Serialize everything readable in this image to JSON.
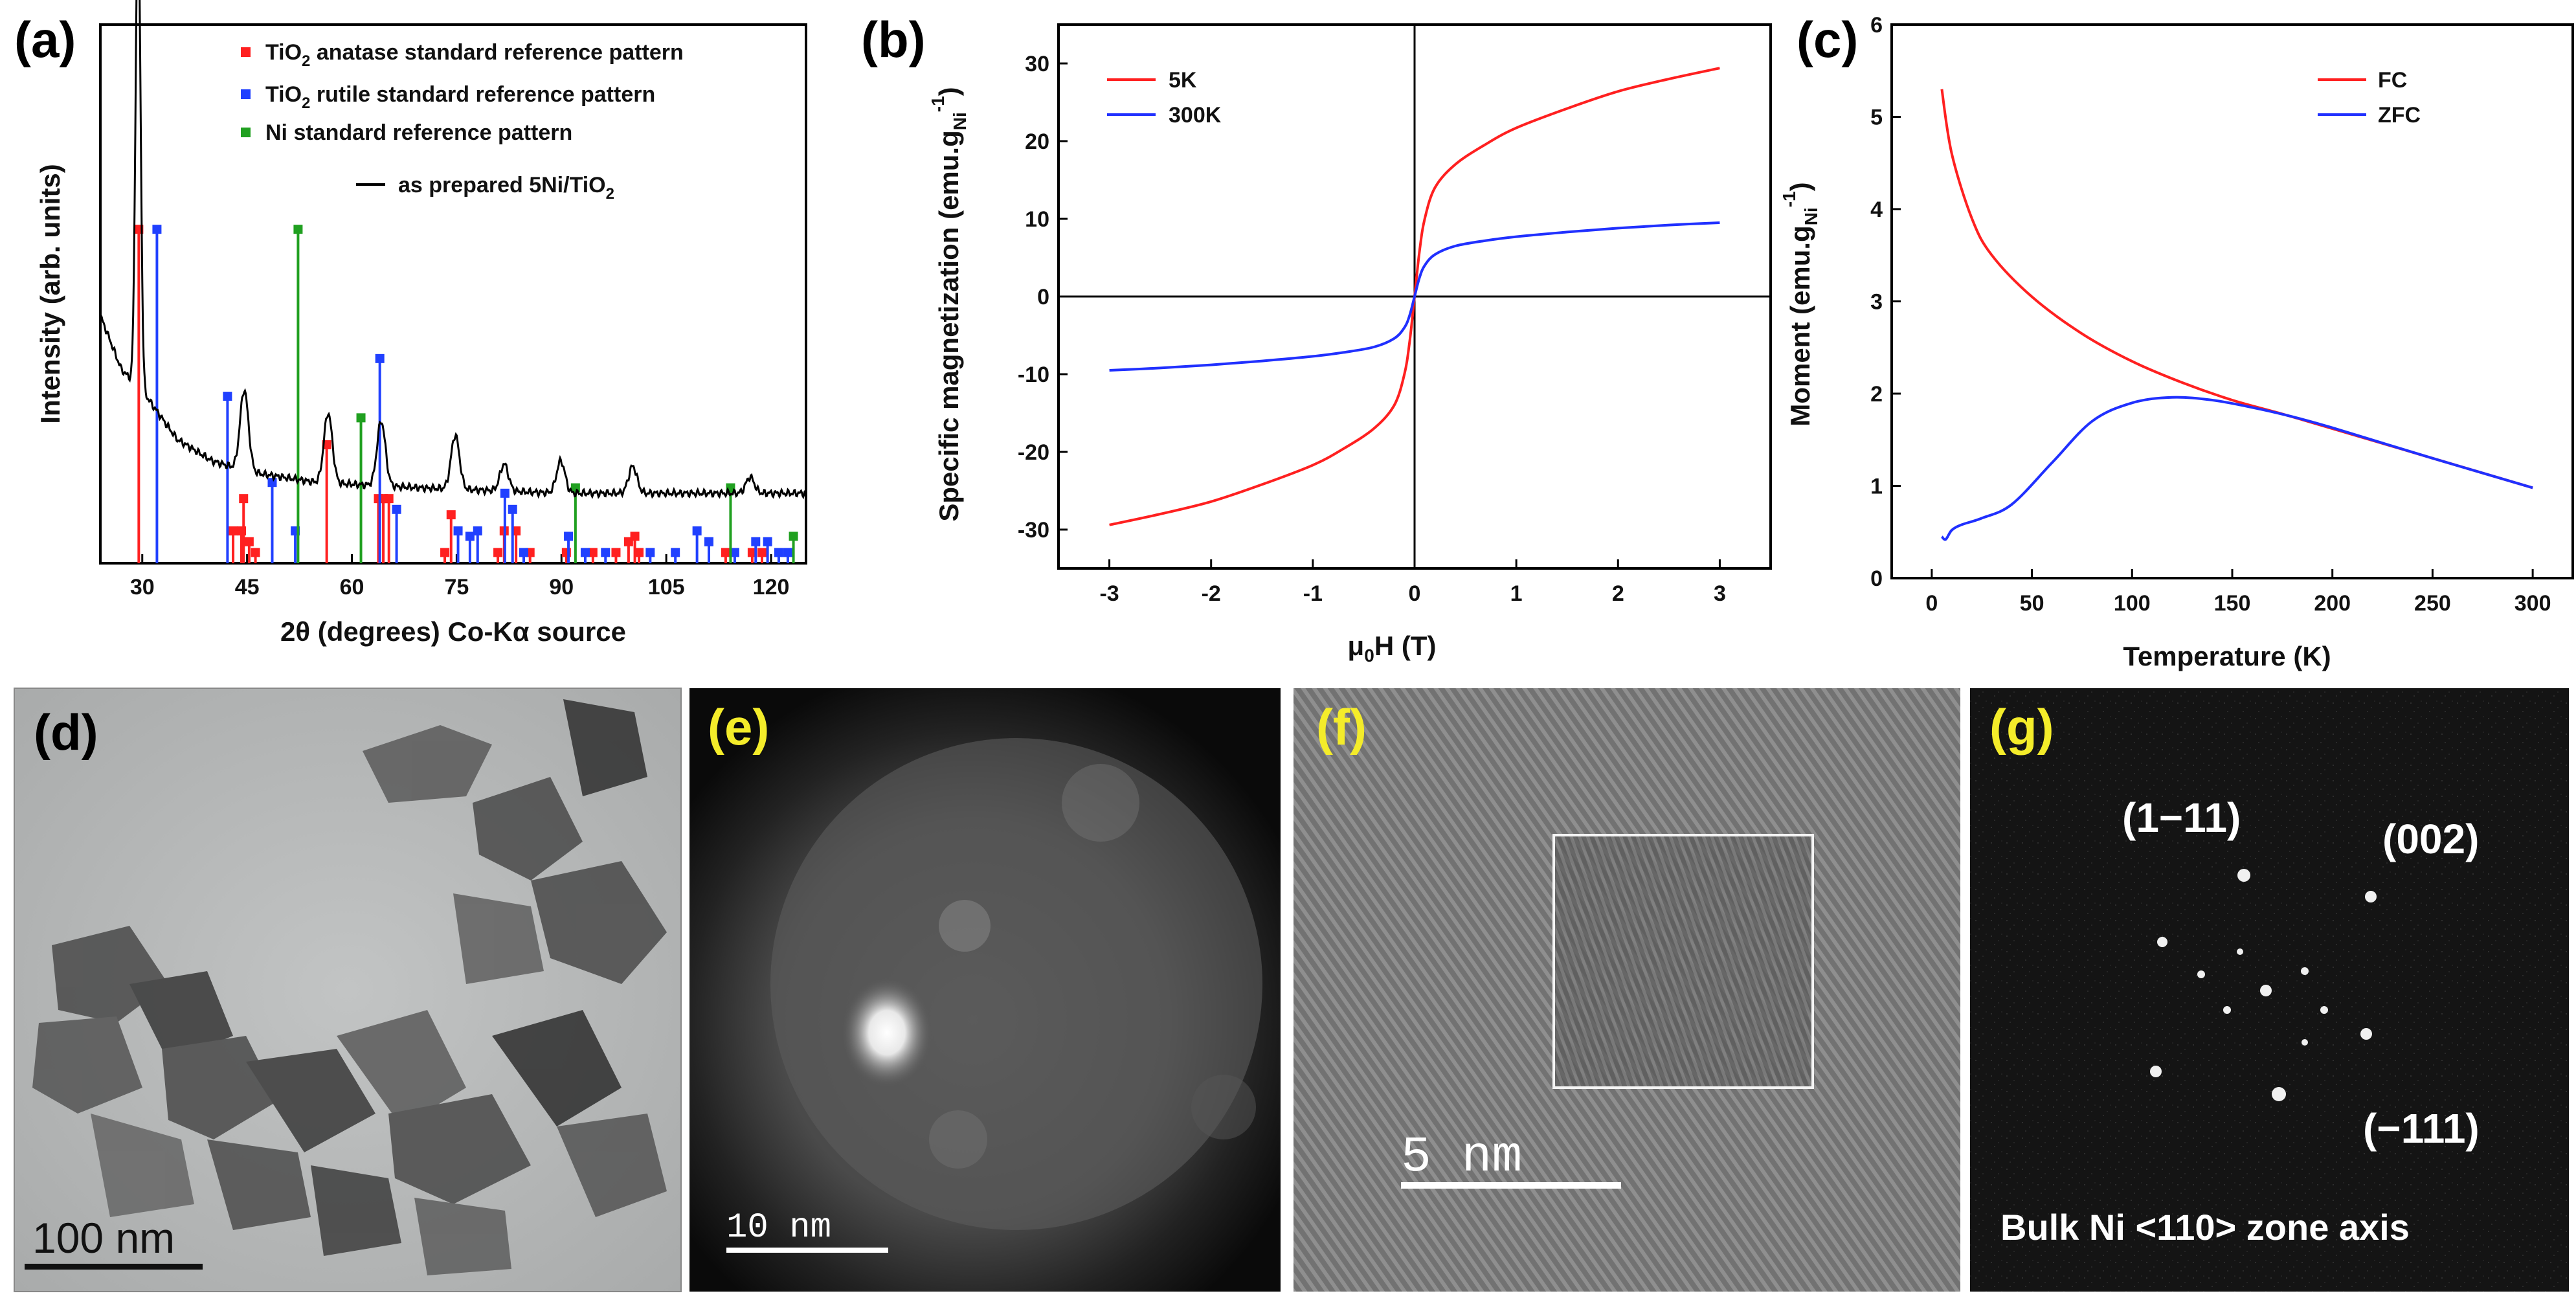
{
  "panels": {
    "a": {
      "letter": "(a)",
      "letter_color": "#000000"
    },
    "b": {
      "letter": "(b)",
      "letter_color": "#000000"
    },
    "c": {
      "letter": "(c)",
      "letter_color": "#000000"
    },
    "d": {
      "letter": "(d)",
      "letter_color": "#000000",
      "scale_bar": "100 nm"
    },
    "e": {
      "letter": "(e)",
      "letter_color": "#f4ec2a",
      "scale_bar": "10 nm"
    },
    "f": {
      "letter": "(f)",
      "letter_color": "#f4ec2a",
      "scale_bar": "5 nm"
    },
    "g": {
      "letter": "(g)",
      "letter_color": "#f4ec2a",
      "spot_labels": [
        "(1−11)",
        "(002)",
        "(−111)"
      ],
      "caption": "Bulk Ni <110> zone  axis"
    }
  },
  "chart_data": [
    {
      "panel": "a",
      "type": "line",
      "xlabel": "2θ (degrees) Co-Kα source",
      "ylabel": "Intensity (arb. units)",
      "xlim": [
        24,
        125
      ],
      "xticks": [
        30,
        45,
        60,
        75,
        90,
        105,
        120
      ],
      "legend": {
        "placement": "top-right",
        "entries": [
          {
            "label": "TiO",
            "sub": "2",
            "rest": " anatase standard reference pattern",
            "color": "#ff2020",
            "marker": "square"
          },
          {
            "label": "TiO",
            "sub": "2",
            "rest": " rutile standard reference pattern",
            "color": "#2040ff",
            "marker": "square"
          },
          {
            "label": "Ni standard reference pattern",
            "sub": "",
            "rest": "",
            "color": "#20a020",
            "marker": "square"
          },
          {
            "label": "as prepared 5Ni/TiO",
            "sub": "2",
            "rest": "",
            "color": "#000000",
            "marker": "line"
          }
        ]
      },
      "series": [
        {
          "name": "as prepared 5Ni/TiO2",
          "color": "#000000",
          "baseline": [
            [
              24,
              0.46
            ],
            [
              27,
              0.36
            ],
            [
              30,
              0.32
            ],
            [
              35,
              0.23
            ],
            [
              40,
              0.19
            ],
            [
              45,
              0.17
            ],
            [
              55,
              0.15
            ],
            [
              70,
              0.14
            ],
            [
              90,
              0.13
            ],
            [
              110,
              0.13
            ],
            [
              125,
              0.13
            ]
          ],
          "peaks": [
            [
              29.4,
              0.9
            ],
            [
              44.6,
              0.15
            ],
            [
              56.6,
              0.13
            ],
            [
              64.2,
              0.12
            ],
            [
              74.8,
              0.1
            ],
            [
              81.8,
              0.05
            ],
            [
              89.9,
              0.06
            ],
            [
              100.2,
              0.05
            ],
            [
              117,
              0.03
            ]
          ]
        },
        {
          "name": "TiO2 anatase standard reference pattern",
          "color": "#ff2020",
          "sticks": [
            [
              29.5,
              0.62
            ],
            [
              44.5,
              0.12
            ],
            [
              43,
              0.06
            ],
            [
              44.2,
              0.06
            ],
            [
              45.3,
              0.04
            ],
            [
              46.2,
              0.02
            ],
            [
              56.4,
              0.22
            ],
            [
              63.8,
              0.12
            ],
            [
              64.5,
              0.12
            ],
            [
              65.3,
              0.12
            ],
            [
              74.2,
              0.09
            ],
            [
              73.3,
              0.02
            ],
            [
              80.9,
              0.02
            ],
            [
              81.8,
              0.06
            ],
            [
              83.5,
              0.06
            ],
            [
              85.5,
              0.02
            ],
            [
              90.7,
              0.02
            ],
            [
              94.5,
              0.02
            ],
            [
              97.8,
              0.02
            ],
            [
              99.6,
              0.04
            ],
            [
              100.5,
              0.05
            ],
            [
              101.1,
              0.02
            ],
            [
              113.5,
              0.02
            ],
            [
              117.3,
              0.02
            ],
            [
              118.7,
              0.02
            ]
          ]
        },
        {
          "name": "TiO2 rutile standard reference pattern",
          "color": "#2040ff",
          "sticks": [
            [
              32.1,
              0.62
            ],
            [
              42.2,
              0.31
            ],
            [
              48.6,
              0.15
            ],
            [
              51.9,
              0.06
            ],
            [
              64,
              0.38
            ],
            [
              66.4,
              0.1
            ],
            [
              75.2,
              0.06
            ],
            [
              76.9,
              0.05
            ],
            [
              78,
              0.06
            ],
            [
              81.9,
              0.13
            ],
            [
              83,
              0.1
            ],
            [
              84.6,
              0.02
            ],
            [
              91,
              0.05
            ],
            [
              93.4,
              0.02
            ],
            [
              96.3,
              0.02
            ],
            [
              102.7,
              0.02
            ],
            [
              106.3,
              0.02
            ],
            [
              109.4,
              0.06
            ],
            [
              111.1,
              0.04
            ],
            [
              114.8,
              0.02
            ],
            [
              117.8,
              0.04
            ],
            [
              119.5,
              0.04
            ],
            [
              121.1,
              0.02
            ],
            [
              122.4,
              0.02
            ]
          ]
        },
        {
          "name": "Ni standard reference pattern",
          "color": "#20a020",
          "sticks": [
            [
              52.3,
              0.62
            ],
            [
              61.3,
              0.27
            ],
            [
              92,
              0.14
            ],
            [
              114.2,
              0.14
            ],
            [
              123.2,
              0.05
            ]
          ]
        }
      ]
    },
    {
      "panel": "b",
      "type": "line",
      "xlabel": "μ₀H (T)",
      "ylabel": "Specific magnetization (emu.g",
      "ylabel_sub": "Ni",
      "ylabel_sup": "-1",
      "xlim": [
        -3.5,
        3.5
      ],
      "ylim": [
        -35,
        35
      ],
      "xticks": [
        -3,
        -2,
        -1,
        0,
        1,
        2,
        3
      ],
      "yticks": [
        -30,
        -20,
        -10,
        0,
        10,
        20,
        30
      ],
      "legend": {
        "placement": "top-left"
      },
      "series": [
        {
          "name": "5K",
          "color": "#ff2020",
          "x": [
            0,
            0.05,
            0.1,
            0.2,
            0.4,
            0.7,
            1,
            1.5,
            2,
            2.5,
            3
          ],
          "y": [
            0,
            6,
            10,
            14,
            17,
            19.6,
            21.7,
            24.2,
            26.4,
            28,
            29.4
          ]
        },
        {
          "name": "300K",
          "color": "#2030ff",
          "x": [
            0,
            0.05,
            0.1,
            0.2,
            0.4,
            0.7,
            1,
            1.5,
            2,
            2.5,
            3
          ],
          "y": [
            0,
            2.5,
            4,
            5.4,
            6.5,
            7.2,
            7.7,
            8.3,
            8.8,
            9.2,
            9.5
          ]
        }
      ]
    },
    {
      "panel": "c",
      "type": "line",
      "xlabel": "Temperature (K)",
      "ylabel": "Moment (emu.g",
      "ylabel_sub": "Ni",
      "ylabel_sup": "-1",
      "xlim": [
        -20,
        320
      ],
      "ylim": [
        0,
        6
      ],
      "xticks": [
        0,
        50,
        100,
        150,
        200,
        250,
        300
      ],
      "yticks": [
        0,
        1,
        2,
        3,
        4,
        5,
        6
      ],
      "legend": {
        "placement": "top-right"
      },
      "series": [
        {
          "name": "FC",
          "color": "#ff2020",
          "x": [
            5,
            10,
            20,
            30,
            50,
            75,
            100,
            125,
            150,
            175,
            200,
            250,
            300
          ],
          "y": [
            5.3,
            4.6,
            3.9,
            3.5,
            3.05,
            2.65,
            2.35,
            2.12,
            1.93,
            1.78,
            1.62,
            1.3,
            0.98
          ]
        },
        {
          "name": "ZFC",
          "color": "#2030ff",
          "x": [
            5,
            7,
            10,
            15,
            25,
            40,
            60,
            80,
            100,
            120,
            140,
            160,
            180,
            200,
            250,
            300
          ],
          "y": [
            0.45,
            0.42,
            0.52,
            0.58,
            0.65,
            0.8,
            1.25,
            1.7,
            1.9,
            1.96,
            1.93,
            1.85,
            1.75,
            1.63,
            1.3,
            0.98
          ]
        }
      ]
    }
  ]
}
